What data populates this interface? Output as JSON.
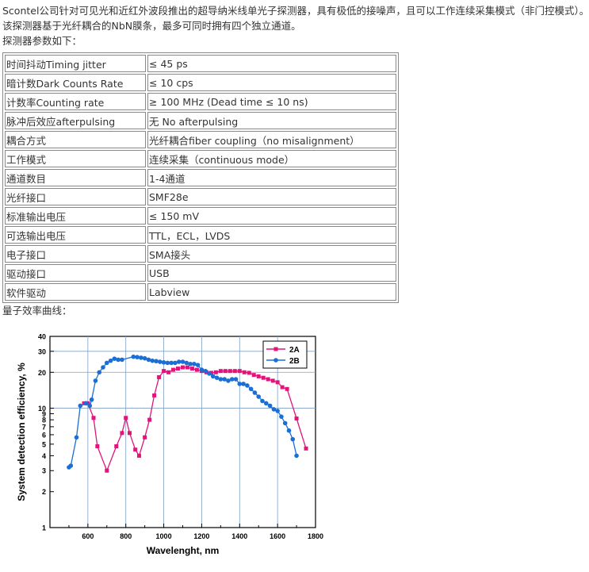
{
  "intro": {
    "line1": "Scontel公司针对可见光和近红外波段推出的超导纳米线单光子探测器，具有极低的接噪声，且可以工作连续采集模式（非门控模式）。",
    "line2": "该探测器基于光纤耦合的NbN膜条，最多可同时拥有四个独立通道。",
    "line3": "探测器参数如下："
  },
  "specs": [
    {
      "name": "时间抖动Timing jitter",
      "value": "≤ 45 ps"
    },
    {
      "name": "暗计数Dark Counts Rate",
      "value": "≤ 10 cps"
    },
    {
      "name": "计数率Counting rate",
      "value": "≥ 100 MHz (Dead time ≤ 10 ns)"
    },
    {
      "name": "脉冲后效应afterpulsing",
      "value": "无 No afterpulsing"
    },
    {
      "name": "耦合方式",
      "value": "光纤耦合fiber coupling（no misalignment）"
    },
    {
      "name": "工作模式",
      "value": "连续采集（continuous mode）"
    },
    {
      "name": "通道数目",
      "value": "1-4通道"
    },
    {
      "name": "光纤接口",
      "value": "SMF28e"
    },
    {
      "name": "标准输出电压",
      "value": "≤ 150 mV"
    },
    {
      "name": "可选输出电压",
      "value": "TTL，ECL，LVDS"
    },
    {
      "name": "电子接口",
      "value": "SMA接头"
    },
    {
      "name": "驱动接口",
      "value": "USB"
    },
    {
      "name": "软件驱动",
      "value": "Labview"
    }
  ],
  "qe_caption": "量子效率曲线：",
  "chart_data": {
    "type": "line",
    "xlabel": "Wavelenght, nm",
    "ylabel": "System detection efficiency, %",
    "xlim": [
      400,
      1800
    ],
    "ylim": [
      1,
      40
    ],
    "yscale": "log",
    "xticks": [
      600,
      800,
      1000,
      1200,
      1400,
      1600,
      1800
    ],
    "yticks": [
      1,
      2,
      3,
      4,
      5,
      6,
      7,
      8,
      9,
      10,
      20,
      30,
      40
    ],
    "grid": true,
    "legend_position": "top-right",
    "series": [
      {
        "name": "2A",
        "color": "#e0157a",
        "marker": "square",
        "x": [
          580,
          600,
          630,
          650,
          700,
          750,
          780,
          800,
          820,
          850,
          870,
          900,
          925,
          950,
          975,
          1000,
          1025,
          1050,
          1075,
          1100,
          1125,
          1150,
          1175,
          1200,
          1225,
          1250,
          1275,
          1300,
          1325,
          1350,
          1375,
          1400,
          1425,
          1450,
          1475,
          1500,
          1525,
          1550,
          1575,
          1600,
          1625,
          1650,
          1700,
          1750
        ],
        "y": [
          11,
          11,
          8.3,
          4.8,
          3.0,
          4.8,
          6.2,
          8.3,
          6.2,
          4.5,
          4.0,
          5.7,
          8.0,
          12.8,
          18.2,
          20.5,
          20.0,
          21.0,
          21.5,
          22.0,
          22.0,
          21.5,
          21.0,
          20.5,
          20.0,
          19.8,
          20.0,
          20.5,
          20.5,
          20.5,
          20.5,
          20.5,
          20.0,
          19.8,
          19.0,
          18.5,
          18.0,
          17.5,
          17.0,
          16.5,
          15.0,
          14.5,
          8.2,
          4.6
        ]
      },
      {
        "name": "2B",
        "color": "#1a6fd6",
        "marker": "circle",
        "x": [
          500,
          510,
          540,
          560,
          590,
          610,
          620,
          640,
          660,
          680,
          700,
          720,
          740,
          760,
          780,
          840,
          860,
          880,
          900,
          920,
          940,
          960,
          980,
          1000,
          1020,
          1040,
          1060,
          1080,
          1100,
          1120,
          1140,
          1160,
          1180,
          1200,
          1220,
          1240,
          1260,
          1280,
          1300,
          1320,
          1340,
          1360,
          1380,
          1400,
          1420,
          1440,
          1460,
          1480,
          1500,
          1520,
          1540,
          1560,
          1580,
          1600,
          1620,
          1640,
          1660,
          1680,
          1700
        ],
        "y": [
          3.2,
          3.3,
          5.7,
          10.5,
          11.0,
          10.5,
          11.8,
          17.0,
          20.0,
          22.0,
          24.0,
          25.0,
          26.0,
          25.5,
          25.5,
          27.0,
          26.8,
          26.5,
          26.2,
          25.5,
          25.0,
          24.8,
          24.5,
          24.2,
          24.0,
          24.0,
          24.0,
          24.5,
          24.5,
          24.0,
          23.5,
          23.5,
          23.0,
          21.0,
          20.5,
          19.5,
          18.5,
          18.0,
          17.5,
          17.5,
          17.0,
          17.5,
          17.5,
          16.0,
          16.0,
          15.5,
          14.5,
          13.5,
          12.5,
          11.5,
          11.0,
          10.5,
          9.8,
          9.5,
          8.5,
          7.5,
          6.5,
          5.5,
          4.0
        ]
      }
    ]
  }
}
